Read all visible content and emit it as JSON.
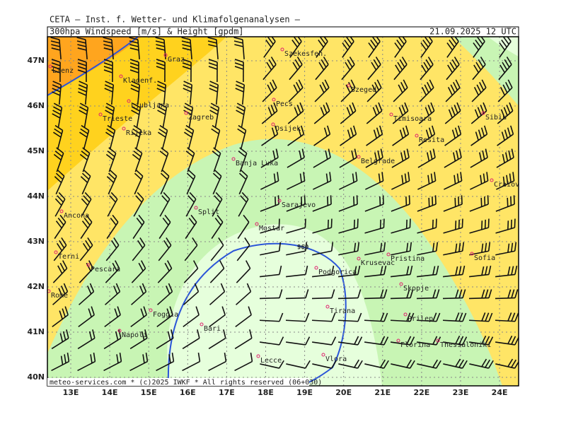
{
  "header": {
    "institute": "CETA — Inst. f. Wetter- und Klimafolgenanalysen —",
    "product": "300hpa Windspeed [m/s] & Height [gpdm]",
    "valid": "21.09.2025 12 UTC"
  },
  "footer": "meteo-services.com * (c)2025 IWKF * All rights reserved (06+030)",
  "contour_label": "960",
  "lon_labels": [
    "13E",
    "14E",
    "15E",
    "16E",
    "17E",
    "18E",
    "19E",
    "20E",
    "21E",
    "22E",
    "23E",
    "24E"
  ],
  "lat_labels": [
    "47N",
    "46N",
    "45N",
    "44N",
    "43N",
    "42N",
    "41N",
    "40N"
  ],
  "cities": [
    "Lienz",
    "Graz",
    "Szekesfeh.",
    "Klagenf.",
    "Ljubljana",
    "Zagreb",
    "Pecs",
    "Szeged",
    "Timisoara",
    "Sibiu",
    "Trieste",
    "Rijeka",
    "Osijek",
    "Resita",
    "Banja Luka",
    "Belgrade",
    "Craiova",
    "Ancona",
    "Split",
    "Sarajevo",
    "Mostar",
    "Terni",
    "Pescara",
    "Krusevac",
    "Pristina",
    "Sofia",
    "Podgorica",
    "Skopje",
    "Rome",
    "Foggia",
    "Tirana",
    "Prilep",
    "Bari",
    "Napoli",
    "Florina",
    "Thessaloniki",
    "Lecce",
    "Vlora"
  ]
}
